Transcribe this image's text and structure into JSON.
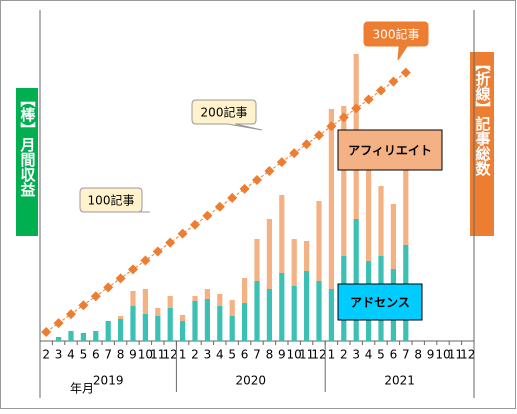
{
  "chart_data": {
    "type": "bar",
    "y_label": "【棒】月間収益",
    "y2_label": "【折線】記事総数",
    "x_label": "年月",
    "categories": [
      "2",
      "3",
      "4",
      "5",
      "6",
      "7",
      "8",
      "9",
      "10",
      "11",
      "12",
      "1",
      "2",
      "3",
      "4",
      "5",
      "6",
      "7",
      "8",
      "9",
      "10",
      "11",
      "12",
      "1",
      "2",
      "3",
      "4",
      "5",
      "6",
      "7",
      "8",
      "9",
      "10",
      "11",
      "12"
    ],
    "year_labels": [
      "2019",
      "2020",
      "2021"
    ],
    "ylim": [
      0,
      331
    ],
    "y2lim": [
      0,
      370
    ],
    "series": [
      {
        "name": "アドセンス",
        "color": "#3cc0b4",
        "values": [
          0,
          4,
          10,
          8,
          10,
          20,
          22,
          35,
          27,
          25,
          33,
          20,
          40,
          42,
          35,
          25,
          38,
          60,
          52,
          68,
          55,
          70,
          60,
          52,
          85,
          122,
          80,
          85,
          72,
          96,
          null,
          null,
          null,
          null,
          null
        ]
      },
      {
        "name": "アフィリエイト",
        "color": "#f4b183",
        "values": [
          0,
          0,
          0,
          0,
          0,
          0,
          3,
          15,
          25,
          8,
          12,
          6,
          5,
          10,
          12,
          16,
          25,
          42,
          70,
          78,
          47,
          30,
          80,
          180,
          150,
          165,
          130,
          70,
          65,
          80,
          null,
          null,
          null,
          null,
          null
        ]
      },
      {
        "type": "line",
        "axis": "y2",
        "color": "#ed7d31",
        "values": [
          10,
          20,
          30,
          40,
          50,
          60,
          70,
          80,
          90,
          100,
          110,
          120,
          130,
          140,
          150,
          160,
          170,
          180,
          190,
          200,
          210,
          220,
          230,
          240,
          250,
          260,
          270,
          280,
          290,
          300,
          null,
          null,
          null,
          null,
          null
        ]
      }
    ],
    "annotations": [
      "100記事",
      "200記事",
      "300記事"
    ]
  }
}
